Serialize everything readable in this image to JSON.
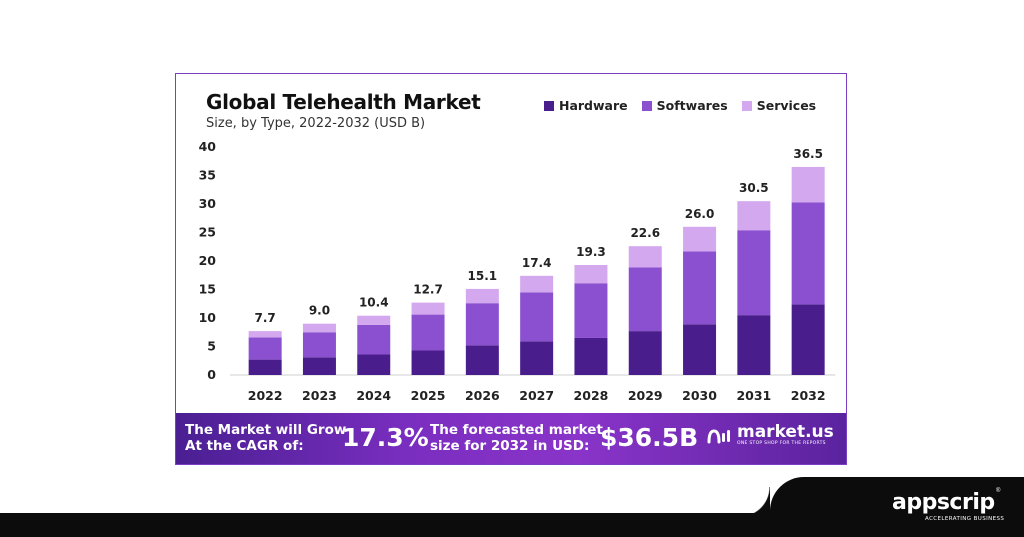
{
  "colors": {
    "hardware": "#4a1d8c",
    "softwares": "#8b50d0",
    "services": "#d4a8ee",
    "border": "#7b3fc4",
    "footer": "#0c0c0c"
  },
  "chart_data": {
    "type": "bar",
    "stacked": true,
    "title": "Global Telehealth Market",
    "subtitle": "Size, by Type, 2022-2032 (USD B)",
    "categories": [
      "2022",
      "2023",
      "2024",
      "2025",
      "2026",
      "2027",
      "2028",
      "2029",
      "2030",
      "2031",
      "2032"
    ],
    "series": [
      {
        "name": "Hardware",
        "values": [
          2.7,
          3.1,
          3.6,
          4.3,
          5.2,
          5.9,
          6.5,
          7.7,
          8.9,
          10.5,
          12.4
        ]
      },
      {
        "name": "Softwares",
        "values": [
          3.9,
          4.4,
          5.2,
          6.3,
          7.4,
          8.6,
          9.6,
          11.2,
          12.8,
          14.9,
          17.9
        ]
      },
      {
        "name": "Services",
        "values": [
          1.1,
          1.5,
          1.6,
          2.1,
          2.5,
          2.9,
          3.2,
          3.7,
          4.3,
          5.1,
          6.2
        ]
      }
    ],
    "totals": [
      "7.7",
      "9.0",
      "10.4",
      "12.7",
      "15.1",
      "17.4",
      "19.3",
      "22.6",
      "26.0",
      "30.5",
      "36.5"
    ],
    "yticks": [
      0,
      5,
      10,
      15,
      20,
      25,
      30,
      35,
      40
    ],
    "ylim": [
      0,
      40
    ],
    "legend_position": "top-right",
    "grid": false
  },
  "banner": {
    "cagr_label_1": "The Market will Grow",
    "cagr_label_2": "At the CAGR of:",
    "cagr_value": "17.3%",
    "forecast_label_1": "The forecasted market",
    "forecast_label_2": "size for 2032 in USD:",
    "forecast_value": "$36.5B",
    "logo_name": "market.us",
    "logo_tagline": "ONE STOP SHOP FOR THE REPORTS"
  },
  "footer": {
    "brand": "appscrip",
    "tagline": "ACCELERATING BUSINESS",
    "reg": "®"
  }
}
